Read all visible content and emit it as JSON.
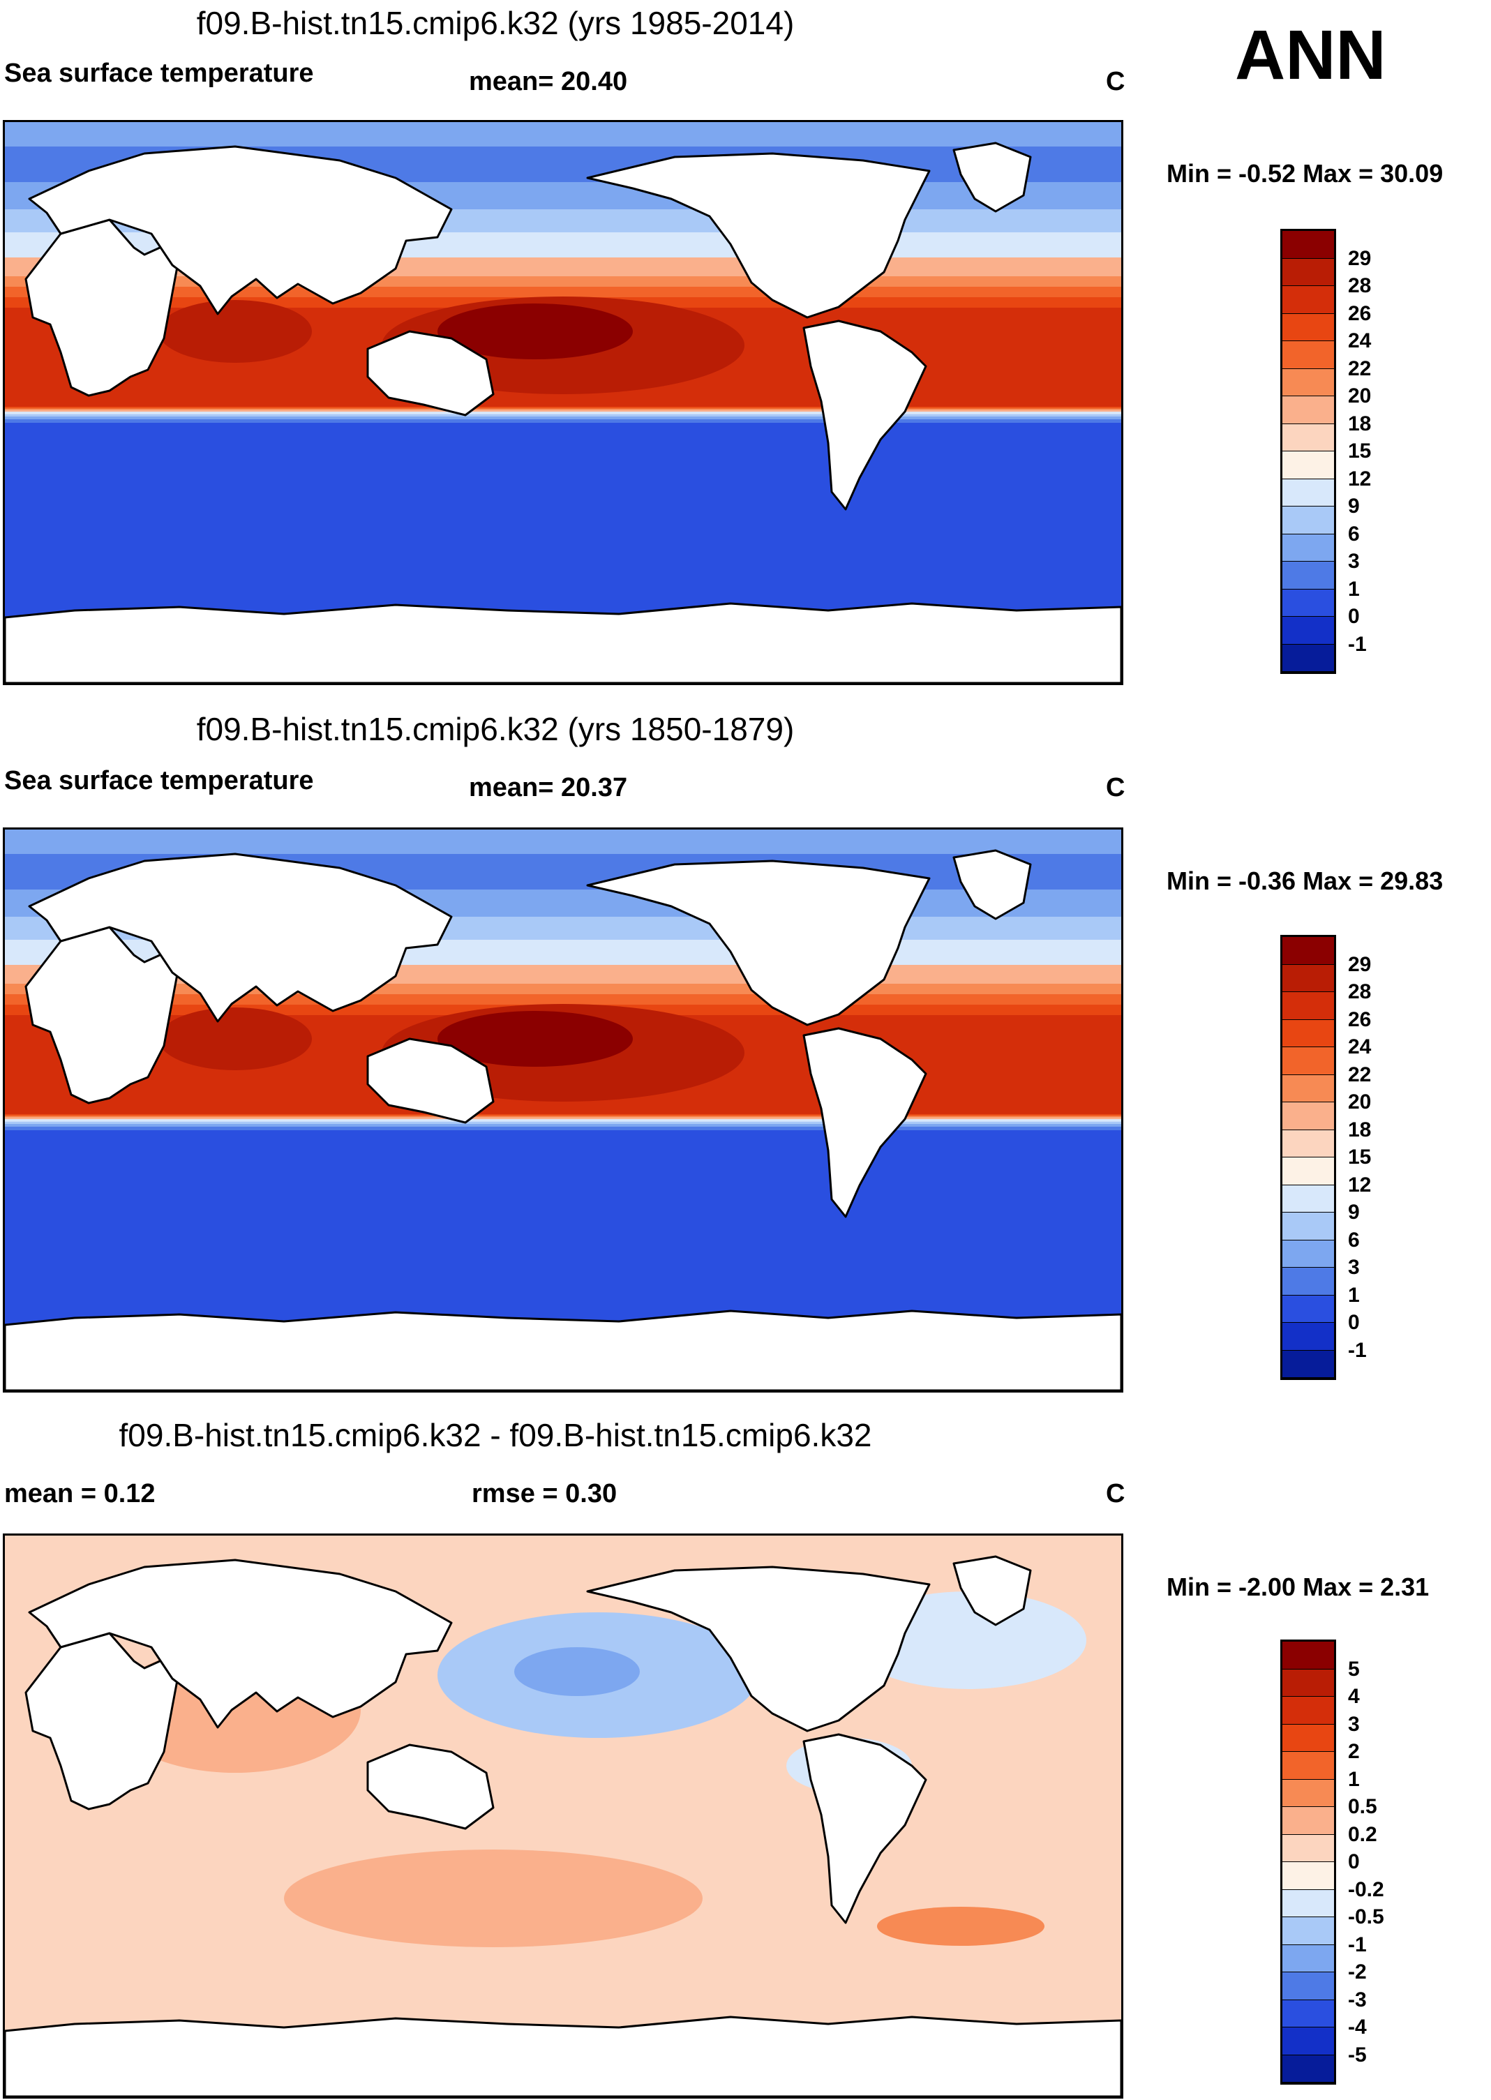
{
  "season": "ANN",
  "panels": [
    {
      "title": "f09.B-hist.tn15.cmip6.k32 (yrs 1985-2014)",
      "left_label": "Sea surface temperature",
      "center_label": "mean=  20.40",
      "units": "C",
      "minmax": "Min =  -0.52 Max =  30.09",
      "map_kind": "sst",
      "colorbar": {
        "ticks": [
          "29",
          "28",
          "26",
          "24",
          "22",
          "20",
          "18",
          "15",
          "12",
          "9",
          "6",
          "3",
          "1",
          "0",
          "-1"
        ],
        "colors": [
          "#8b0000",
          "#b91d05",
          "#d42e0a",
          "#e84612",
          "#f2642a",
          "#f78a54",
          "#fab08c",
          "#fcd5bf",
          "#fdf2e6",
          "#d8e8fb",
          "#a9c9f7",
          "#7da7f0",
          "#4e7ae6",
          "#2a4fe0",
          "#1330c8",
          "#061c9a"
        ]
      }
    },
    {
      "title": "f09.B-hist.tn15.cmip6.k32 (yrs 1850-1879)",
      "left_label": "Sea surface temperature",
      "center_label": "mean=  20.37",
      "units": "C",
      "minmax": "Min =  -0.36 Max =  29.83",
      "map_kind": "sst",
      "colorbar": {
        "ticks": [
          "29",
          "28",
          "26",
          "24",
          "22",
          "20",
          "18",
          "15",
          "12",
          "9",
          "6",
          "3",
          "1",
          "0",
          "-1"
        ],
        "colors": [
          "#8b0000",
          "#b91d05",
          "#d42e0a",
          "#e84612",
          "#f2642a",
          "#f78a54",
          "#fab08c",
          "#fcd5bf",
          "#fdf2e6",
          "#d8e8fb",
          "#a9c9f7",
          "#7da7f0",
          "#4e7ae6",
          "#2a4fe0",
          "#1330c8",
          "#061c9a"
        ]
      }
    },
    {
      "title": "f09.B-hist.tn15.cmip6.k32 - f09.B-hist.tn15.cmip6.k32",
      "left_label": "mean =   0.12",
      "center_label": "rmse =   0.30",
      "units": "C",
      "minmax": "Min = -2.00 Max =   2.31",
      "map_kind": "diff",
      "colorbar": {
        "ticks": [
          "5",
          "4",
          "3",
          "2",
          "1",
          "0.5",
          "0.2",
          "0",
          "-0.2",
          "-0.5",
          "-1",
          "-2",
          "-3",
          "-4",
          "-5"
        ],
        "colors": [
          "#8b0000",
          "#b91d05",
          "#d42e0a",
          "#e84612",
          "#f2642a",
          "#f78a54",
          "#fab08c",
          "#fcd5bf",
          "#fdf2e6",
          "#d8e8fb",
          "#a9c9f7",
          "#7da7f0",
          "#4e7ae6",
          "#2a4fe0",
          "#1330c8",
          "#061c9a"
        ]
      }
    }
  ],
  "chart_data": [
    {
      "type": "heatmap",
      "title": "f09.B-hist.tn15.cmip6.k32 (yrs 1985-2014)",
      "variable": "Sea surface temperature",
      "units": "C",
      "mean": 20.4,
      "min": -0.52,
      "max": 30.09,
      "contour_levels": [
        -1,
        0,
        1,
        3,
        6,
        9,
        12,
        15,
        18,
        20,
        22,
        24,
        26,
        28,
        29
      ]
    },
    {
      "type": "heatmap",
      "title": "f09.B-hist.tn15.cmip6.k32 (yrs 1850-1879)",
      "variable": "Sea surface temperature",
      "units": "C",
      "mean": 20.37,
      "min": -0.36,
      "max": 29.83,
      "contour_levels": [
        -1,
        0,
        1,
        3,
        6,
        9,
        12,
        15,
        18,
        20,
        22,
        24,
        26,
        28,
        29
      ]
    },
    {
      "type": "heatmap",
      "title": "f09.B-hist.tn15.cmip6.k32 - f09.B-hist.tn15.cmip6.k32",
      "units": "C",
      "mean": 0.12,
      "rmse": 0.3,
      "min": -2.0,
      "max": 2.31,
      "contour_levels": [
        -5,
        -4,
        -3,
        -2,
        -1,
        -0.5,
        -0.2,
        0,
        0.2,
        0.5,
        1,
        2,
        3,
        4,
        5
      ]
    }
  ]
}
